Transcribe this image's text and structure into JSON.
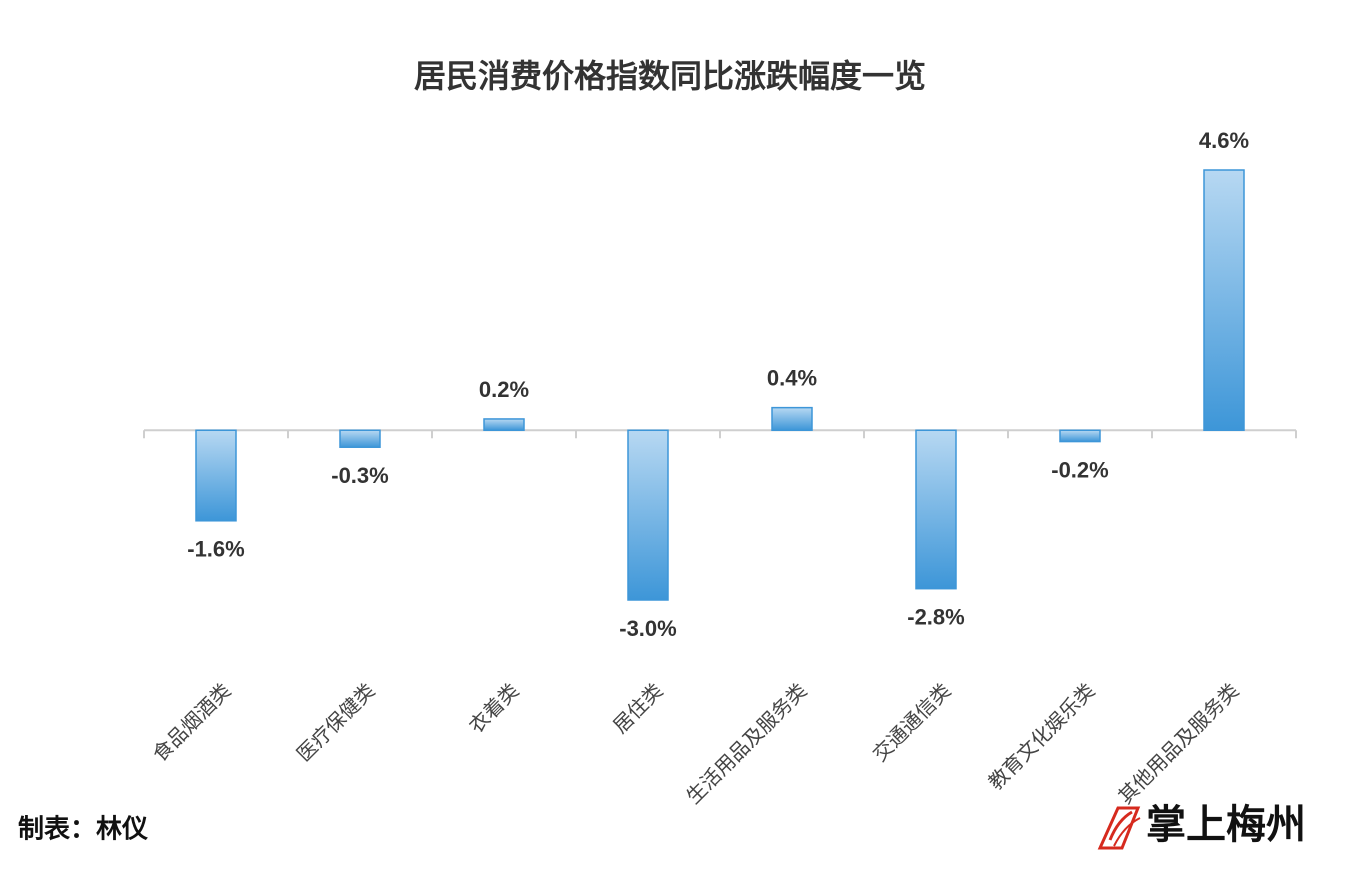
{
  "chart_data": {
    "type": "bar",
    "title": "居民消费价格指数同比涨跌幅度一览",
    "categories": [
      "食品烟酒类",
      "医疗保健类",
      "衣着类",
      "居住类",
      "生活用品及服务类",
      "交通通信类",
      "教育文化娱乐类",
      "其他用品及服务类"
    ],
    "values": [
      -1.6,
      -0.3,
      0.2,
      -3.0,
      0.4,
      -2.8,
      -0.2,
      4.6
    ],
    "value_labels": [
      "-1.6%",
      "-0.3%",
      "0.2%",
      "-3.0%",
      "0.4%",
      "-2.8%",
      "-0.2%",
      "4.6%"
    ],
    "color": "#3d96d8"
  },
  "footer": {
    "credit": "制表：林仪",
    "logo": "掌上梅州"
  }
}
